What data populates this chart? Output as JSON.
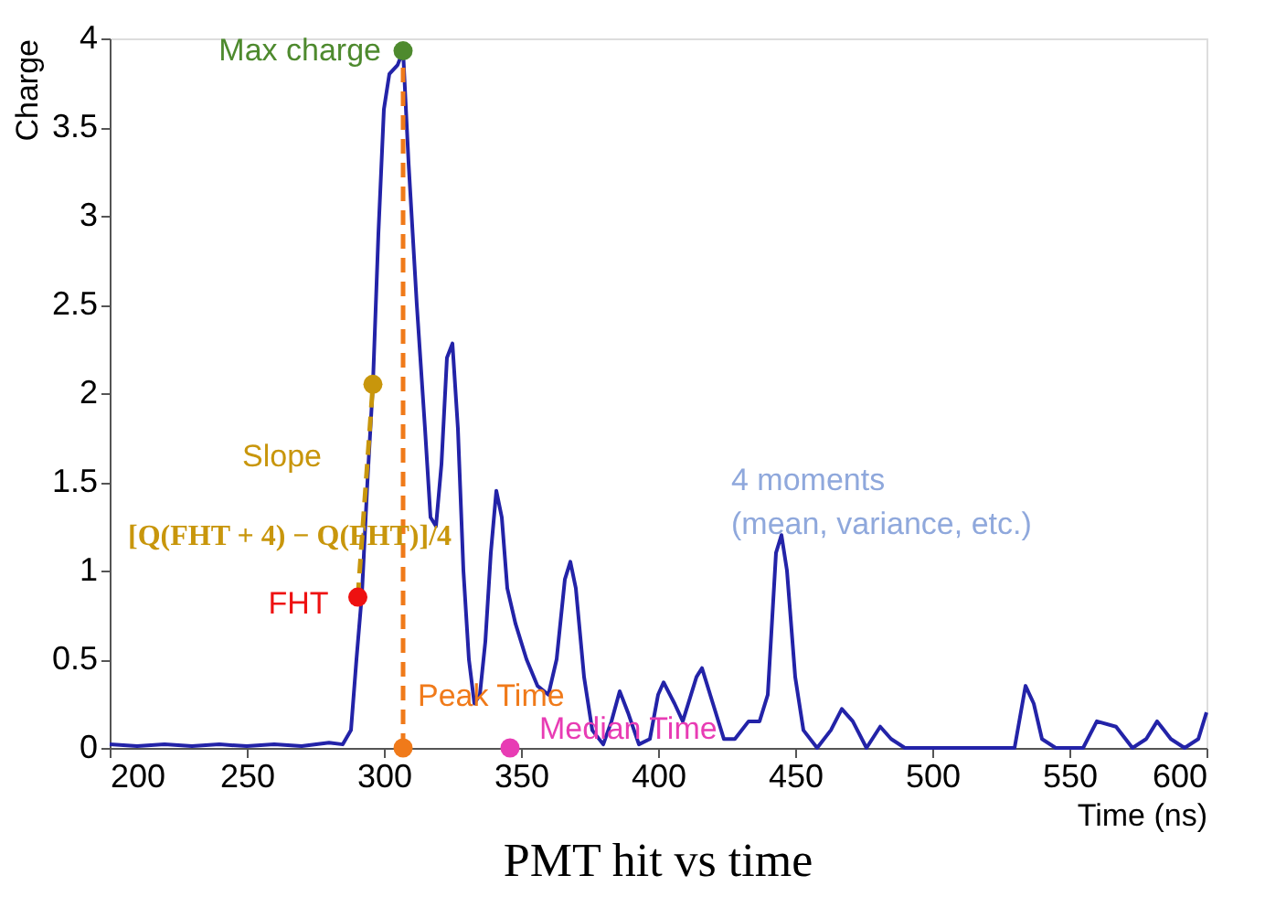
{
  "chart_data": {
    "type": "line",
    "title": "PMT hit vs time",
    "xlabel": "Time (ns)",
    "ylabel": "Charge",
    "xlim": [
      200,
      600
    ],
    "xticks": [
      200,
      250,
      300,
      350,
      400,
      450,
      500,
      550,
      600
    ],
    "ylim": [
      0,
      4
    ],
    "yticks": [
      0,
      0.5,
      1,
      1.5,
      2,
      2.5,
      3,
      3.5,
      4
    ],
    "grid": false,
    "legend": false,
    "annotations": [
      "[Q(FHT + 4) − Q(FHT)]/4",
      "4 moments\n(mean, variance, etc.)"
    ],
    "series": [
      {
        "color": "#2323a8",
        "line_style": "solid",
        "x": [
          200,
          210,
          220,
          230,
          240,
          250,
          260,
          270,
          280,
          285,
          288,
          290,
          292,
          294,
          296,
          298,
          300,
          302,
          305,
          307,
          309,
          312,
          315,
          317,
          319,
          321,
          323,
          325,
          327,
          329,
          331,
          333,
          335,
          337,
          339,
          341,
          343,
          345,
          348,
          352,
          356,
          360,
          363,
          366,
          368,
          370,
          373,
          376,
          380,
          383,
          386,
          389,
          393,
          397,
          400,
          402,
          406,
          409,
          414,
          416,
          420,
          424,
          428,
          433,
          437,
          440,
          443,
          445,
          447,
          450,
          453,
          458,
          463,
          467,
          471,
          476,
          481,
          485,
          490,
          500,
          510,
          520,
          530,
          534,
          537,
          540,
          545,
          555,
          560,
          567,
          573,
          578,
          582,
          587,
          592,
          597,
          600
        ],
        "values": [
          0.02,
          0.01,
          0.02,
          0.01,
          0.02,
          0.01,
          0.02,
          0.01,
          0.03,
          0.02,
          0.1,
          0.5,
          0.87,
          1.5,
          2.05,
          2.9,
          3.6,
          3.8,
          3.85,
          3.93,
          3.3,
          2.5,
          1.8,
          1.3,
          1.25,
          1.6,
          2.2,
          2.28,
          1.8,
          1.0,
          0.5,
          0.25,
          0.3,
          0.6,
          1.1,
          1.45,
          1.3,
          0.9,
          0.7,
          0.5,
          0.35,
          0.3,
          0.5,
          0.95,
          1.05,
          0.9,
          0.4,
          0.1,
          0.02,
          0.15,
          0.32,
          0.2,
          0.02,
          0.05,
          0.3,
          0.37,
          0.25,
          0.15,
          0.4,
          0.45,
          0.25,
          0.05,
          0.05,
          0.15,
          0.15,
          0.3,
          1.1,
          1.2,
          1.0,
          0.4,
          0.1,
          0.0,
          0.1,
          0.22,
          0.15,
          0.0,
          0.12,
          0.05,
          0.0,
          0.0,
          0.0,
          0.0,
          0.0,
          0.35,
          0.25,
          0.05,
          0.0,
          0.0,
          0.15,
          0.12,
          0.0,
          0.05,
          0.15,
          0.05,
          0.0,
          0.05,
          0.2
        ]
      },
      {
        "type": "line",
        "color": "#c8960c",
        "line_style": "dashed",
        "x": [
          290.5,
          296
        ],
        "values": [
          0.85,
          2.05
        ]
      },
      {
        "type": "line",
        "color": "#f07a1a",
        "line_style": "dashed",
        "x": [
          307,
          307
        ],
        "values": [
          0,
          3.93
        ]
      },
      {
        "type": "scatter",
        "name": "Max charge",
        "color": "#4e8a2e",
        "marker": "circle",
        "x": [
          307
        ],
        "values": [
          3.93
        ]
      },
      {
        "type": "scatter",
        "name": "Slope",
        "color": "#c8960c",
        "marker": "circle",
        "x": [
          296
        ],
        "values": [
          2.05
        ]
      },
      {
        "type": "scatter",
        "name": "FHT",
        "color": "#ee1111",
        "marker": "circle",
        "x": [
          290.5
        ],
        "values": [
          0.85
        ]
      },
      {
        "type": "scatter",
        "name": "Peak Time",
        "color": "#f07a1a",
        "marker": "circle",
        "x": [
          307
        ],
        "values": [
          0
        ]
      },
      {
        "type": "scatter",
        "name": "Median Time",
        "color": "#e83cb4",
        "marker": "circle",
        "x": [
          346
        ],
        "values": [
          0
        ]
      }
    ]
  }
}
